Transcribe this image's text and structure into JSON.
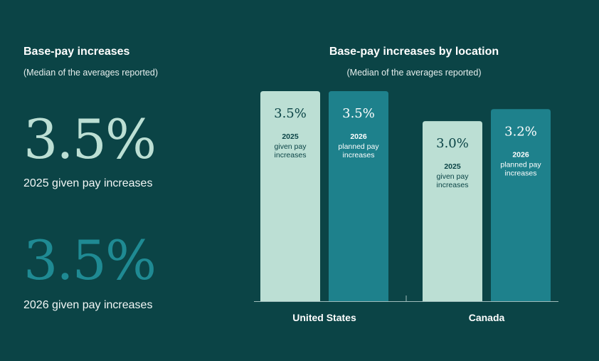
{
  "left_panel": {
    "title": "Base-pay increases",
    "subtitle": "(Median of the averages reported)",
    "stat1_value": "3.5%",
    "stat1_label": "2025 given pay increases",
    "stat2_value": "3.5%",
    "stat2_label": "2026 given pay increases"
  },
  "chart_data": {
    "type": "bar",
    "title": "Base-pay increases by location",
    "subtitle": "(Median of the averages reported)",
    "categories": [
      "United States",
      "Canada"
    ],
    "series": [
      {
        "year": "2025",
        "desc": "given pay increases",
        "values": [
          3.5,
          3.0
        ],
        "labels": [
          "3.5%",
          "3.0%"
        ],
        "color": "#bcdfd4",
        "text_color": "#0b4446"
      },
      {
        "year": "2026",
        "desc": "planned pay increases",
        "values": [
          3.5,
          3.2
        ],
        "labels": [
          "3.5%",
          "3.2%"
        ],
        "color": "#1e818c",
        "text_color": "#ffffff"
      }
    ],
    "ylim": [
      0,
      3.5
    ],
    "grid": false,
    "legend": "none"
  },
  "colors": {
    "background": "#0b4446",
    "light_teal": "#bcdfd4",
    "dark_teal": "#1e818c"
  }
}
